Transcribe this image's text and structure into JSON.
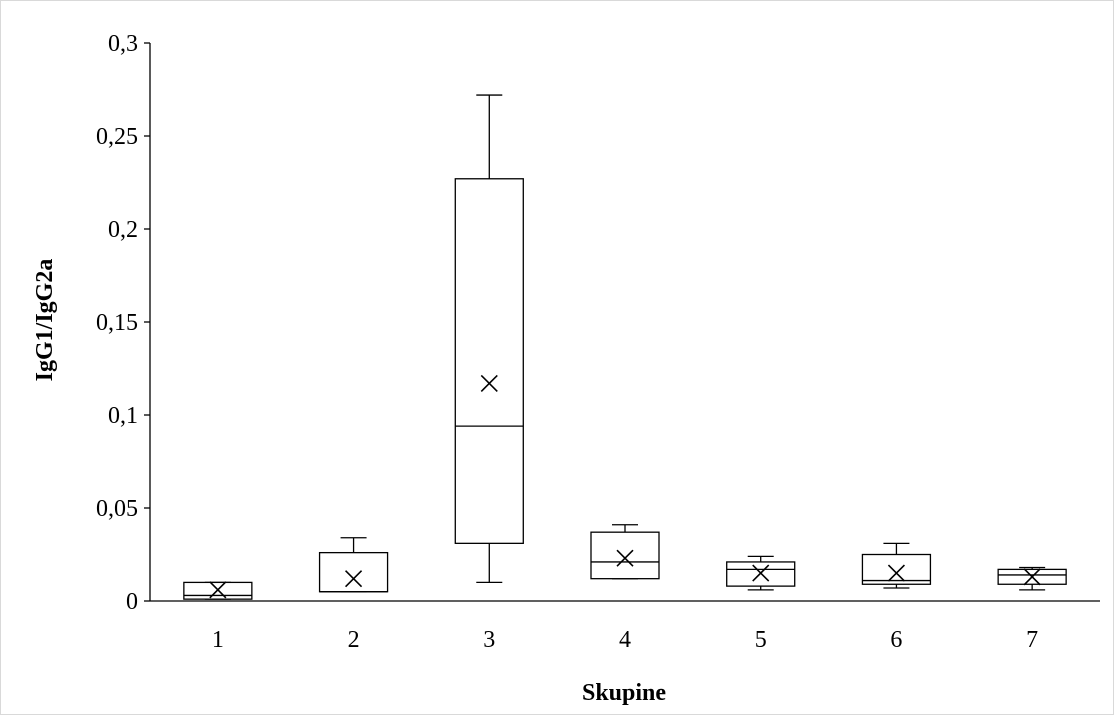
{
  "chart_data": {
    "type": "box",
    "title": "",
    "xlabel": "Skupine",
    "ylabel": "IgG1/IgG2a",
    "ylim": [
      0,
      0.3
    ],
    "y_ticks": [
      0,
      0.05,
      0.1,
      0.15,
      0.2,
      0.25,
      0.3
    ],
    "y_tick_labels": [
      "0",
      "0,05",
      "0,1",
      "0,15",
      "0,2",
      "0,25",
      "0,3"
    ],
    "categories": [
      "1",
      "2",
      "3",
      "4",
      "5",
      "6",
      "7"
    ],
    "grid": false,
    "legend": "none",
    "boxes": [
      {
        "category": "1",
        "min": 0.001,
        "q1": 0.001,
        "median": 0.003,
        "q3": 0.01,
        "max": 0.01,
        "mean": 0.006
      },
      {
        "category": "2",
        "min": 0.005,
        "q1": 0.005,
        "median": 0.005,
        "q3": 0.026,
        "max": 0.034,
        "mean": 0.012
      },
      {
        "category": "3",
        "min": 0.01,
        "q1": 0.031,
        "median": 0.094,
        "q3": 0.227,
        "max": 0.272,
        "mean": 0.117
      },
      {
        "category": "4",
        "min": 0.012,
        "q1": 0.012,
        "median": 0.021,
        "q3": 0.037,
        "max": 0.041,
        "mean": 0.023
      },
      {
        "category": "5",
        "min": 0.006,
        "q1": 0.008,
        "median": 0.017,
        "q3": 0.021,
        "max": 0.024,
        "mean": 0.015
      },
      {
        "category": "6",
        "min": 0.007,
        "q1": 0.009,
        "median": 0.011,
        "q3": 0.025,
        "max": 0.031,
        "mean": 0.015
      },
      {
        "category": "7",
        "min": 0.006,
        "q1": 0.009,
        "median": 0.014,
        "q3": 0.017,
        "max": 0.018,
        "mean": 0.013
      }
    ]
  }
}
